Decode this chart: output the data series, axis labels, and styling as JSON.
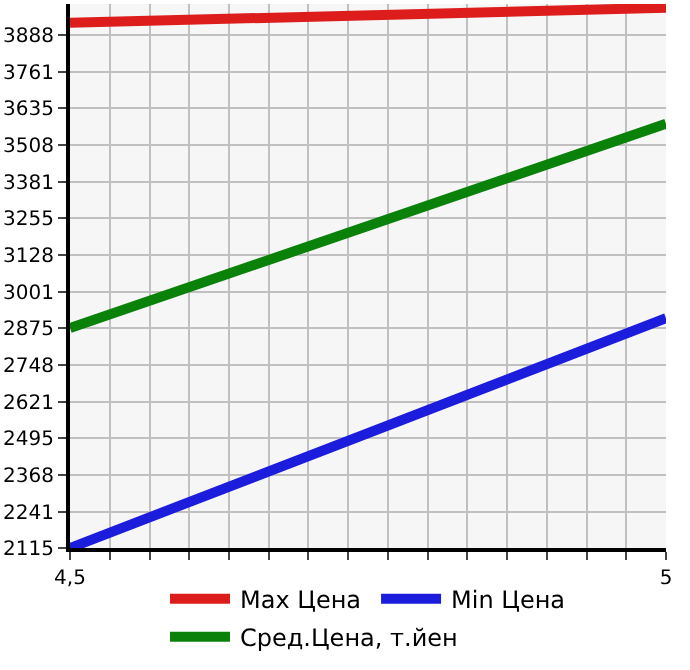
{
  "chart_data": {
    "type": "line",
    "x": [
      4.5,
      5
    ],
    "series": [
      {
        "name": "Max Цена",
        "color": "#dd1c1c",
        "values": [
          3930,
          3982
        ]
      },
      {
        "name": "Min Цена",
        "color": "#1c1cdd",
        "values": [
          2115,
          2909
        ]
      },
      {
        "name": "Сред.Цена, т.йен",
        "color": "#0a820a",
        "values": [
          2875,
          3581
        ]
      }
    ],
    "xlim": [
      4.5,
      5
    ],
    "xticks": [
      {
        "value": 4.5,
        "label": "4,5"
      },
      {
        "value": 4.5333,
        "label": null
      },
      {
        "value": 4.5667,
        "label": null
      },
      {
        "value": 4.6,
        "label": null
      },
      {
        "value": 4.6333,
        "label": null
      },
      {
        "value": 4.6667,
        "label": null
      },
      {
        "value": 4.7,
        "label": null
      },
      {
        "value": 4.7333,
        "label": null
      },
      {
        "value": 4.7667,
        "label": null
      },
      {
        "value": 4.8,
        "label": null
      },
      {
        "value": 4.8333,
        "label": null
      },
      {
        "value": 4.8667,
        "label": null
      },
      {
        "value": 4.9,
        "label": null
      },
      {
        "value": 4.9333,
        "label": null
      },
      {
        "value": 4.9667,
        "label": null
      },
      {
        "value": 5,
        "label": "5"
      }
    ],
    "ylim": [
      2115,
      3995
    ],
    "yticks": [
      2115,
      2241,
      2368,
      2495,
      2621,
      2748,
      2875,
      3001,
      3128,
      3255,
      3381,
      3508,
      3635,
      3761,
      3888
    ],
    "grid": true,
    "legend": "bottom",
    "marker": "none",
    "line_style": "solid"
  }
}
